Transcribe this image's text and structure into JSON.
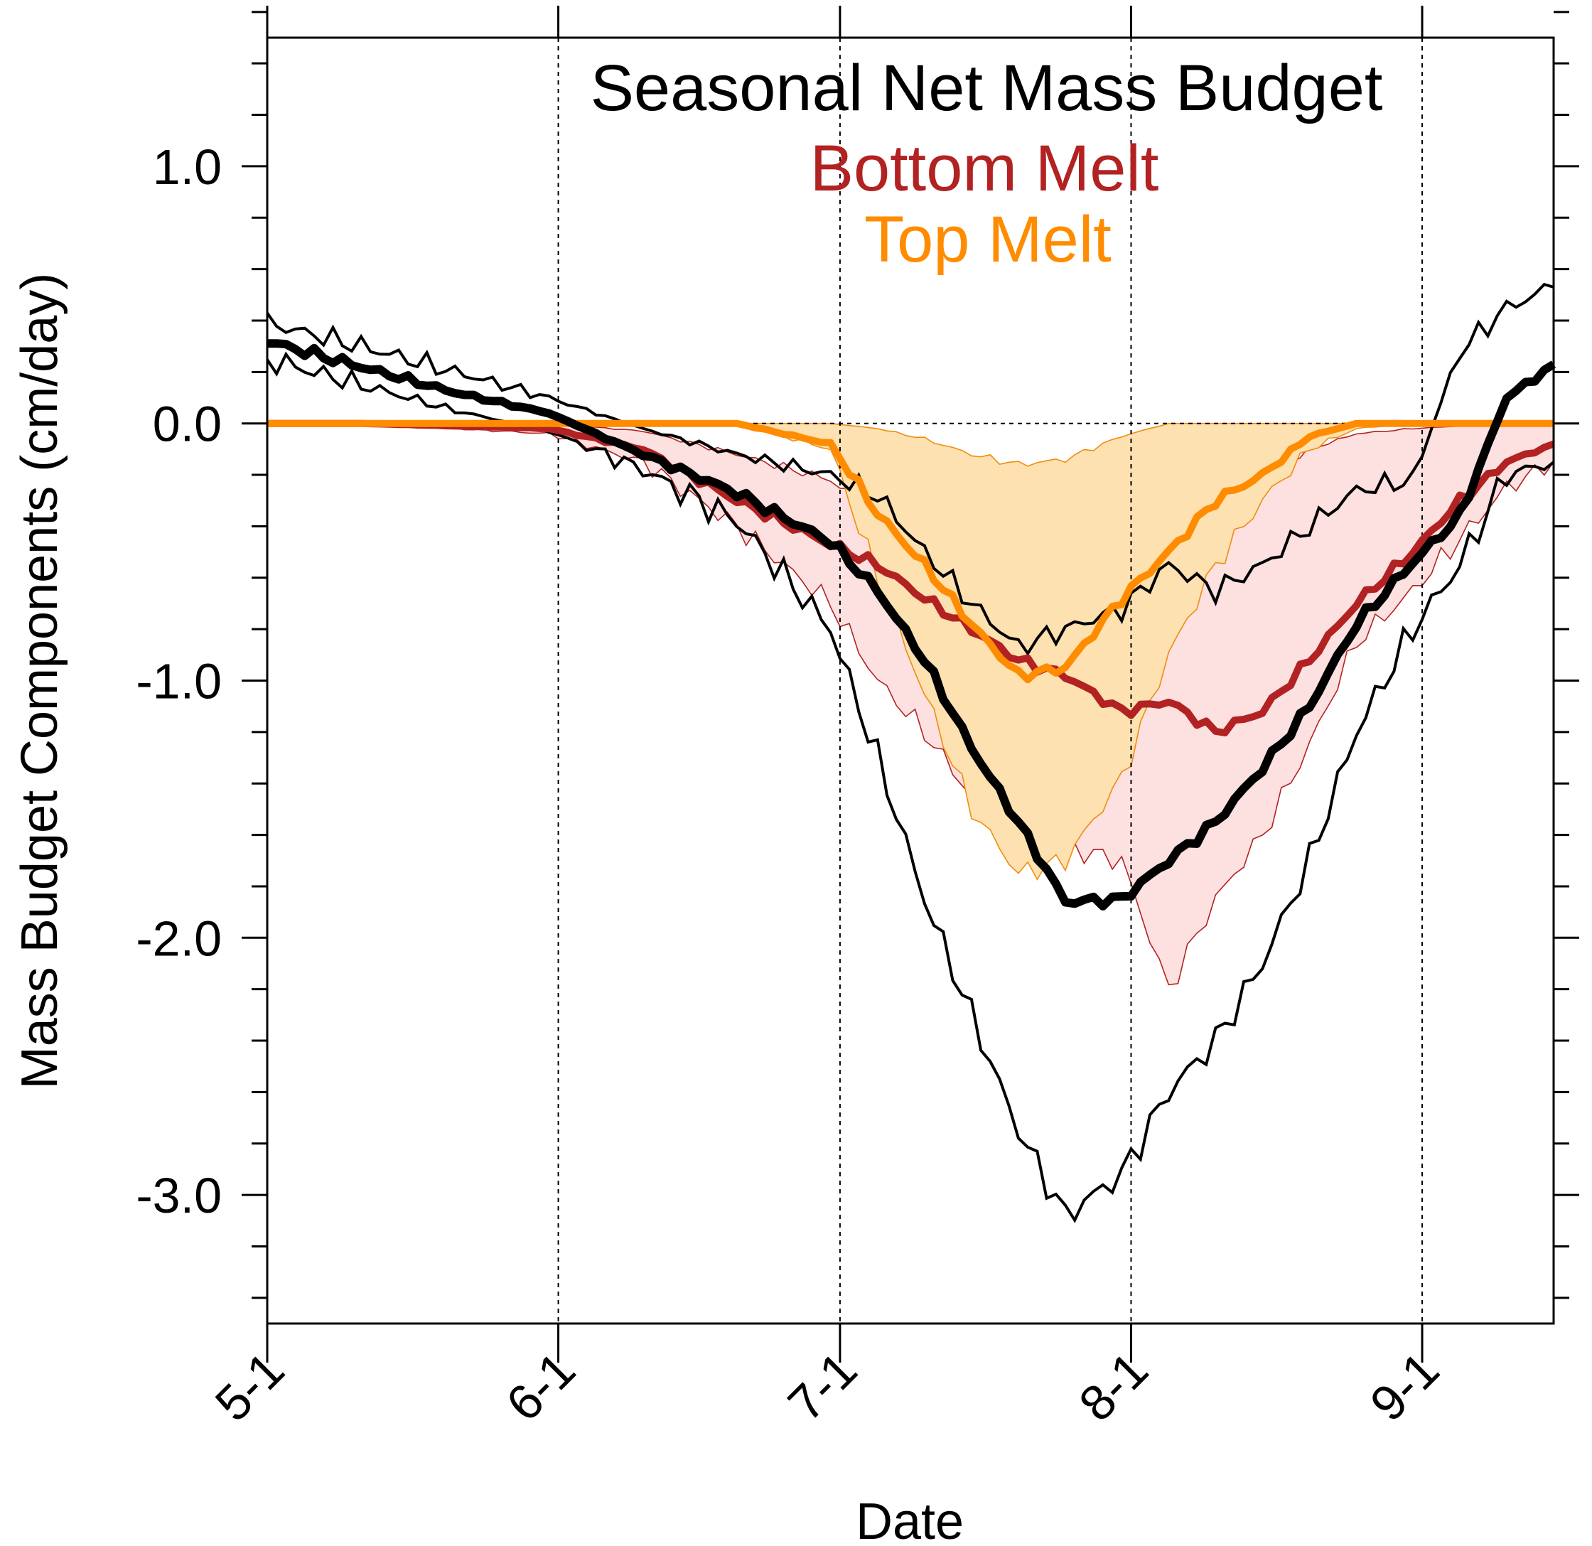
{
  "chart_data": {
    "type": "line",
    "title": "Seasonal Net Mass Budget",
    "xlabel": "Date",
    "ylabel": "Mass Budget Components (cm/day)",
    "xlim": [
      "5-1",
      "9-15"
    ],
    "ylim": [
      -3.5,
      1.5
    ],
    "x_ticks": [
      "5-1",
      "6-1",
      "7-1",
      "8-1",
      "9-1"
    ],
    "y_ticks": [
      "1.0",
      "0.0",
      "-1.0",
      "-2.0",
      "-3.0"
    ],
    "legend": [
      {
        "label": "Bottom Melt",
        "color": "#b22222"
      },
      {
        "label": "Top Melt",
        "color": "#ff8c00"
      }
    ],
    "legend_placement": "top-center",
    "colors": {
      "net": "#000000",
      "bottom": "#b22222",
      "bottom_band": "#fde0e0",
      "top": "#ff8c00",
      "top_band": "#fde1b0",
      "top_band_edge": "#f08c10"
    },
    "series": [
      {
        "key": "net",
        "x": [
          "5-1",
          "5-11",
          "5-21",
          "5-31",
          "6-10",
          "6-20",
          "6-30",
          "7-5",
          "7-10",
          "7-15",
          "7-20",
          "7-25",
          "7-31",
          "8-5",
          "8-10",
          "8-15",
          "8-20",
          "8-25",
          "8-31",
          "9-5",
          "9-10",
          "9-15"
        ],
        "y": [
          0.32,
          0.22,
          0.12,
          0.04,
          -0.12,
          -0.27,
          -0.46,
          -0.65,
          -0.92,
          -1.26,
          -1.55,
          -1.86,
          -1.85,
          -1.7,
          -1.55,
          -1.34,
          -1.1,
          -0.78,
          -0.54,
          -0.36,
          0.1,
          0.23
        ],
        "band_low": [
          0.25,
          0.15,
          0.05,
          -0.03,
          -0.18,
          -0.38,
          -0.8,
          -1.3,
          -1.85,
          -2.3,
          -2.75,
          -3.08,
          -2.92,
          -2.6,
          -2.4,
          -2.1,
          -1.7,
          -1.2,
          -0.8,
          -0.55,
          -0.2,
          -0.15
        ],
        "band_high": [
          0.39,
          0.3,
          0.2,
          0.1,
          -0.02,
          -0.12,
          -0.2,
          -0.28,
          -0.5,
          -0.7,
          -0.87,
          -0.8,
          -0.72,
          -0.55,
          -0.65,
          -0.55,
          -0.4,
          -0.26,
          -0.22,
          0.28,
          0.45,
          0.53
        ]
      },
      {
        "key": "bottom",
        "x": [
          "5-1",
          "5-11",
          "5-21",
          "5-31",
          "6-10",
          "6-20",
          "6-30",
          "7-5",
          "7-10",
          "7-15",
          "7-20",
          "7-25",
          "7-31",
          "8-5",
          "8-10",
          "8-15",
          "8-20",
          "8-25",
          "8-31",
          "9-5",
          "9-10",
          "9-15"
        ],
        "y": [
          0.0,
          0.0,
          -0.01,
          -0.02,
          -0.1,
          -0.3,
          -0.47,
          -0.55,
          -0.68,
          -0.8,
          -0.92,
          -0.98,
          -1.12,
          -1.08,
          -1.2,
          -1.12,
          -0.92,
          -0.7,
          -0.5,
          -0.3,
          -0.15,
          -0.08
        ],
        "band_low": [
          0.0,
          0.0,
          -0.02,
          -0.04,
          -0.15,
          -0.4,
          -0.7,
          -1.0,
          -1.2,
          -1.45,
          -1.55,
          -1.65,
          -1.7,
          -2.2,
          -1.85,
          -1.6,
          -1.25,
          -0.85,
          -0.65,
          -0.45,
          -0.25,
          -0.15
        ],
        "band_high": [
          0.0,
          0.0,
          0.0,
          0.0,
          -0.03,
          -0.12,
          -0.22,
          -0.35,
          -0.45,
          -0.48,
          -0.5,
          -0.55,
          -0.58,
          -0.5,
          -0.38,
          -0.22,
          -0.1,
          -0.04,
          -0.02,
          -0.01,
          0.0,
          0.0
        ]
      },
      {
        "key": "top",
        "x": [
          "5-1",
          "5-11",
          "5-21",
          "5-31",
          "6-10",
          "6-20",
          "6-30",
          "7-5",
          "7-10",
          "7-15",
          "7-20",
          "7-25",
          "7-31",
          "8-5",
          "8-10",
          "8-15",
          "8-20",
          "8-25",
          "8-31",
          "9-5",
          "9-10",
          "9-15"
        ],
        "y": [
          0.0,
          0.0,
          0.0,
          0.0,
          0.0,
          0.0,
          -0.08,
          -0.35,
          -0.55,
          -0.78,
          -0.98,
          -0.95,
          -0.68,
          -0.5,
          -0.3,
          -0.2,
          -0.05,
          0.0,
          0.0,
          0.0,
          0.0,
          0.0
        ],
        "band_low": [
          0.0,
          0.0,
          0.0,
          0.0,
          0.0,
          0.0,
          -0.1,
          -0.6,
          -1.05,
          -1.5,
          -1.75,
          -1.7,
          -1.38,
          -0.9,
          -0.55,
          -0.3,
          -0.1,
          -0.02,
          0.0,
          0.0,
          0.0,
          0.0
        ],
        "band_high": [
          0.0,
          0.0,
          0.0,
          0.0,
          0.0,
          0.0,
          0.0,
          -0.02,
          -0.06,
          -0.12,
          -0.16,
          -0.14,
          -0.05,
          0.0,
          0.0,
          0.0,
          0.0,
          0.0,
          0.0,
          0.0,
          0.0,
          0.0
        ]
      }
    ]
  }
}
